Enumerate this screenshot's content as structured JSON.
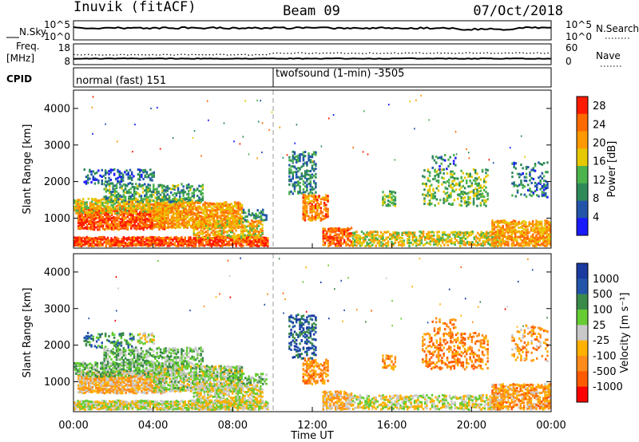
{
  "header": {
    "station": "Inuvik (fitACF)",
    "beam": "Beam 09",
    "date": "07/Oct/2018"
  },
  "summary": {
    "nsky_label": "N.Sky",
    "nsky_ticks": [
      "10^5",
      "10^0"
    ],
    "nsearch_label": "N.Search",
    "nsearch_ticks": [
      "10^5",
      "10^0"
    ],
    "freq_label_1": "Freq.",
    "freq_label_2": "[MHz]",
    "freq_ticks": [
      "18",
      "8"
    ],
    "nave_label": "Nave",
    "nave_ticks": [
      "60",
      "0"
    ],
    "cpid_label": "CPID",
    "cpid_segments": [
      "normal (fast) 151",
      "twofsound (1-min) -3505"
    ]
  },
  "colors": {
    "power": [
      "#1a1aff",
      "#2255aa",
      "#2f8a5a",
      "#4db34d",
      "#e6c800",
      "#ff9900",
      "#ff6a00",
      "#ff1a00"
    ],
    "velocity": [
      "#ff0000",
      "#ff5a00",
      "#ff8c1a",
      "#ffb000",
      "#c8c8c8",
      "#66cc33",
      "#3a8a4a",
      "#2255aa",
      "#1a3aa0"
    ]
  },
  "chart_data": [
    {
      "type": "heatmap",
      "quantity": "Power",
      "ylabel": "Slant Range [km]",
      "ylim": [
        180,
        4500
      ],
      "yticks": [
        "1000",
        "2000",
        "3000",
        "4000"
      ],
      "xlim": [
        0,
        24
      ],
      "colorbar_label": "Power [dB]",
      "colorbar_ticks": [
        "4",
        "8",
        "12",
        "16",
        "20",
        "24",
        "28"
      ],
      "colorbar_range": [
        0,
        30
      ],
      "mode_change_time": 10
    },
    {
      "type": "heatmap",
      "quantity": "Velocity",
      "ylabel": "Slant Range [km]",
      "ylim": [
        180,
        4500
      ],
      "yticks": [
        "1000",
        "2000",
        "3000",
        "4000"
      ],
      "xlim": [
        0,
        24
      ],
      "xlabel": "Time UT",
      "xticks": [
        "00:00",
        "04:00",
        "08:00",
        "12:00",
        "16:00",
        "20:00",
        "00:00"
      ],
      "colorbar_label": "Velocity [m s⁻¹]",
      "colorbar_ticks": [
        "1000",
        "500",
        "100",
        "25",
        "-25",
        "-100",
        "-500",
        "-1000"
      ],
      "mode_change_time": 10
    }
  ]
}
